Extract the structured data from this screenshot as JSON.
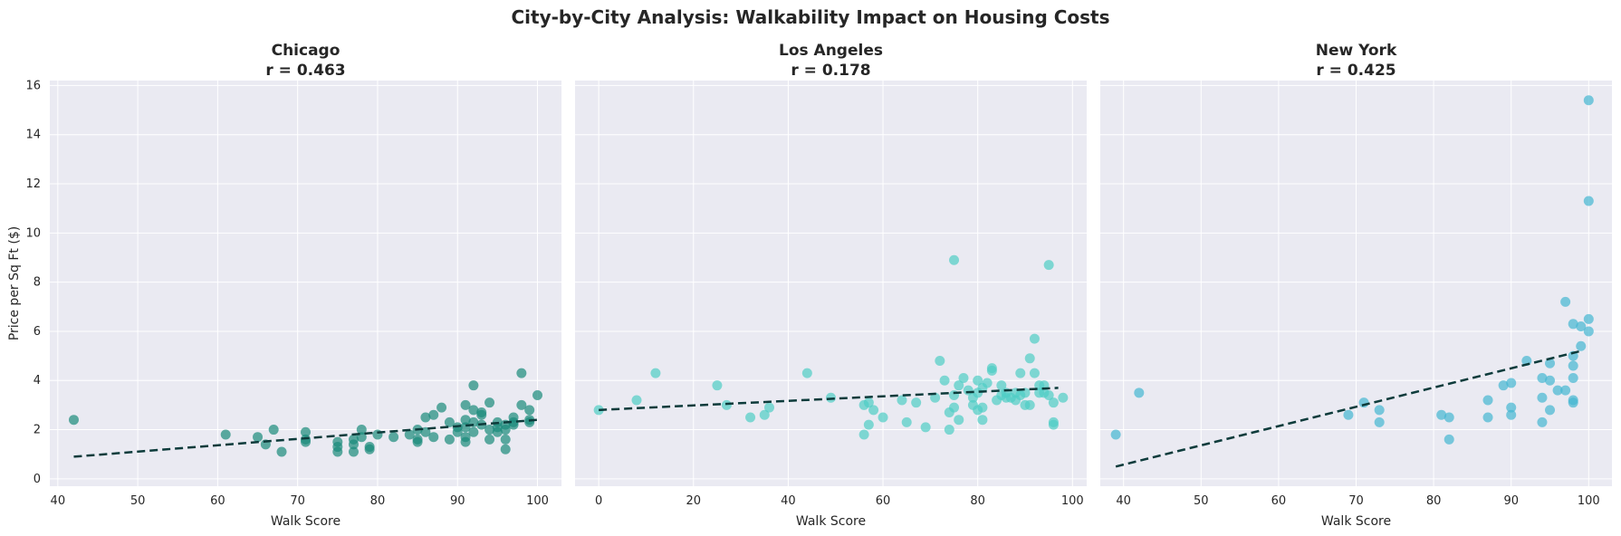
{
  "title": "City-by-City Analysis: Walkability Impact on Housing Costs",
  "chart_data": [
    {
      "type": "scatter",
      "title": "Chicago",
      "subtitle": "r = 0.463",
      "xlabel": "Walk Score",
      "ylabel": "Price per Sq Ft ($)",
      "xlim": [
        39,
        103
      ],
      "ylim": [
        -0.3,
        16.2
      ],
      "xticks": [
        40,
        50,
        60,
        70,
        80,
        90,
        100
      ],
      "yticks": [
        0,
        2,
        4,
        6,
        8,
        10,
        12,
        14,
        16
      ],
      "color": "#1a8a7a",
      "trend": {
        "x": [
          42,
          100
        ],
        "y": [
          0.9,
          2.4
        ],
        "color": "#0d3b3b"
      },
      "grid": true,
      "points": [
        [
          42,
          2.4
        ],
        [
          61,
          1.8
        ],
        [
          65,
          1.7
        ],
        [
          66,
          1.4
        ],
        [
          67,
          2.0
        ],
        [
          68,
          1.1
        ],
        [
          71,
          1.9
        ],
        [
          71,
          1.6
        ],
        [
          71,
          1.5
        ],
        [
          75,
          1.5
        ],
        [
          75,
          1.3
        ],
        [
          75,
          1.1
        ],
        [
          77,
          1.6
        ],
        [
          77,
          1.4
        ],
        [
          77,
          1.1
        ],
        [
          78,
          2.0
        ],
        [
          78,
          1.7
        ],
        [
          79,
          1.3
        ],
        [
          79,
          1.2
        ],
        [
          80,
          1.8
        ],
        [
          82,
          1.7
        ],
        [
          84,
          1.8
        ],
        [
          85,
          1.6
        ],
        [
          85,
          1.5
        ],
        [
          85,
          2.0
        ],
        [
          86,
          2.5
        ],
        [
          86,
          1.9
        ],
        [
          87,
          2.6
        ],
        [
          87,
          1.7
        ],
        [
          88,
          2.9
        ],
        [
          89,
          2.3
        ],
        [
          89,
          1.6
        ],
        [
          90,
          2.1
        ],
        [
          90,
          1.9
        ],
        [
          91,
          3.0
        ],
        [
          91,
          2.4
        ],
        [
          91,
          2.1
        ],
        [
          91,
          1.7
        ],
        [
          91,
          1.5
        ],
        [
          92,
          3.8
        ],
        [
          92,
          2.8
        ],
        [
          92,
          2.3
        ],
        [
          92,
          1.9
        ],
        [
          93,
          2.7
        ],
        [
          93,
          2.6
        ],
        [
          93,
          2.2
        ],
        [
          94,
          3.1
        ],
        [
          94,
          2.0
        ],
        [
          94,
          1.6
        ],
        [
          95,
          2.3
        ],
        [
          95,
          2.1
        ],
        [
          95,
          1.9
        ],
        [
          96,
          2.0
        ],
        [
          96,
          1.6
        ],
        [
          96,
          1.2
        ],
        [
          96,
          2.2
        ],
        [
          97,
          2.5
        ],
        [
          97,
          2.3
        ],
        [
          97,
          2.2
        ],
        [
          98,
          4.3
        ],
        [
          98,
          3.0
        ],
        [
          99,
          2.8
        ],
        [
          99,
          2.4
        ],
        [
          99,
          2.3
        ],
        [
          100,
          3.4
        ]
      ]
    },
    {
      "type": "scatter",
      "title": "Los Angeles",
      "subtitle": "r = 0.178",
      "xlabel": "Walk Score",
      "ylabel": "",
      "xlim": [
        -5,
        103
      ],
      "ylim": [
        -0.3,
        16.2
      ],
      "xticks": [
        0,
        20,
        40,
        60,
        80,
        100
      ],
      "color": "#4ecdc4",
      "trend": {
        "x": [
          0,
          97
        ],
        "y": [
          2.8,
          3.7
        ],
        "color": "#0d3b3b"
      },
      "grid": true,
      "points": [
        [
          0,
          2.8
        ],
        [
          8,
          3.2
        ],
        [
          12,
          4.3
        ],
        [
          25,
          3.8
        ],
        [
          27,
          3.0
        ],
        [
          32,
          2.5
        ],
        [
          35,
          2.6
        ],
        [
          36,
          2.9
        ],
        [
          44,
          4.3
        ],
        [
          49,
          3.3
        ],
        [
          56,
          3.0
        ],
        [
          56,
          1.8
        ],
        [
          57,
          3.1
        ],
        [
          57,
          2.2
        ],
        [
          58,
          2.8
        ],
        [
          60,
          2.5
        ],
        [
          64,
          3.2
        ],
        [
          65,
          2.3
        ],
        [
          67,
          3.1
        ],
        [
          69,
          2.1
        ],
        [
          71,
          3.3
        ],
        [
          72,
          4.8
        ],
        [
          73,
          4.0
        ],
        [
          74,
          2.7
        ],
        [
          74,
          2.0
        ],
        [
          75,
          8.9
        ],
        [
          75,
          3.4
        ],
        [
          75,
          2.9
        ],
        [
          76,
          3.8
        ],
        [
          76,
          2.4
        ],
        [
          77,
          4.1
        ],
        [
          78,
          3.6
        ],
        [
          79,
          3.3
        ],
        [
          79,
          3.0
        ],
        [
          80,
          4.0
        ],
        [
          80,
          3.5
        ],
        [
          80,
          2.8
        ],
        [
          81,
          3.7
        ],
        [
          81,
          2.9
        ],
        [
          81,
          2.4
        ],
        [
          82,
          3.9
        ],
        [
          83,
          4.5
        ],
        [
          83,
          4.4
        ],
        [
          84,
          3.2
        ],
        [
          85,
          3.8
        ],
        [
          85,
          3.4
        ],
        [
          86,
          3.5
        ],
        [
          86,
          3.3
        ],
        [
          87,
          3.3
        ],
        [
          88,
          3.5
        ],
        [
          88,
          3.2
        ],
        [
          89,
          3.4
        ],
        [
          89,
          4.3
        ],
        [
          90,
          3.0
        ],
        [
          90,
          3.5
        ],
        [
          91,
          4.9
        ],
        [
          91,
          3.0
        ],
        [
          92,
          5.7
        ],
        [
          92,
          4.3
        ],
        [
          93,
          3.8
        ],
        [
          93,
          3.5
        ],
        [
          94,
          3.8
        ],
        [
          94,
          3.5
        ],
        [
          95,
          8.7
        ],
        [
          95,
          3.4
        ],
        [
          96,
          3.1
        ],
        [
          96,
          2.3
        ],
        [
          96,
          2.2
        ],
        [
          98,
          3.3
        ]
      ]
    },
    {
      "type": "scatter",
      "title": "New York",
      "subtitle": "r = 0.425",
      "xlabel": "Walk Score",
      "ylabel": "",
      "xlim": [
        37,
        103
      ],
      "ylim": [
        -0.3,
        16.2
      ],
      "xticks": [
        40,
        50,
        60,
        70,
        80,
        90,
        100
      ],
      "color": "#45b7d1",
      "trend": {
        "x": [
          39,
          99
        ],
        "y": [
          0.5,
          5.2
        ],
        "color": "#0d3b3b"
      },
      "grid": true,
      "points": [
        [
          39,
          1.8
        ],
        [
          42,
          3.5
        ],
        [
          69,
          2.6
        ],
        [
          71,
          3.1
        ],
        [
          73,
          2.8
        ],
        [
          73,
          2.3
        ],
        [
          81,
          2.6
        ],
        [
          82,
          2.5
        ],
        [
          82,
          1.6
        ],
        [
          87,
          3.2
        ],
        [
          87,
          2.5
        ],
        [
          89,
          3.8
        ],
        [
          90,
          3.9
        ],
        [
          90,
          2.9
        ],
        [
          90,
          2.6
        ],
        [
          92,
          4.8
        ],
        [
          94,
          4.1
        ],
        [
          94,
          3.3
        ],
        [
          94,
          2.3
        ],
        [
          95,
          4.7
        ],
        [
          95,
          4.0
        ],
        [
          95,
          2.8
        ],
        [
          96,
          3.6
        ],
        [
          97,
          7.2
        ],
        [
          97,
          3.6
        ],
        [
          98,
          6.3
        ],
        [
          98,
          5.0
        ],
        [
          98,
          4.6
        ],
        [
          98,
          4.1
        ],
        [
          98,
          3.2
        ],
        [
          98,
          3.1
        ],
        [
          99,
          6.2
        ],
        [
          99,
          5.4
        ],
        [
          100,
          15.4
        ],
        [
          100,
          11.3
        ],
        [
          100,
          6.5
        ],
        [
          100,
          6.0
        ]
      ]
    }
  ]
}
